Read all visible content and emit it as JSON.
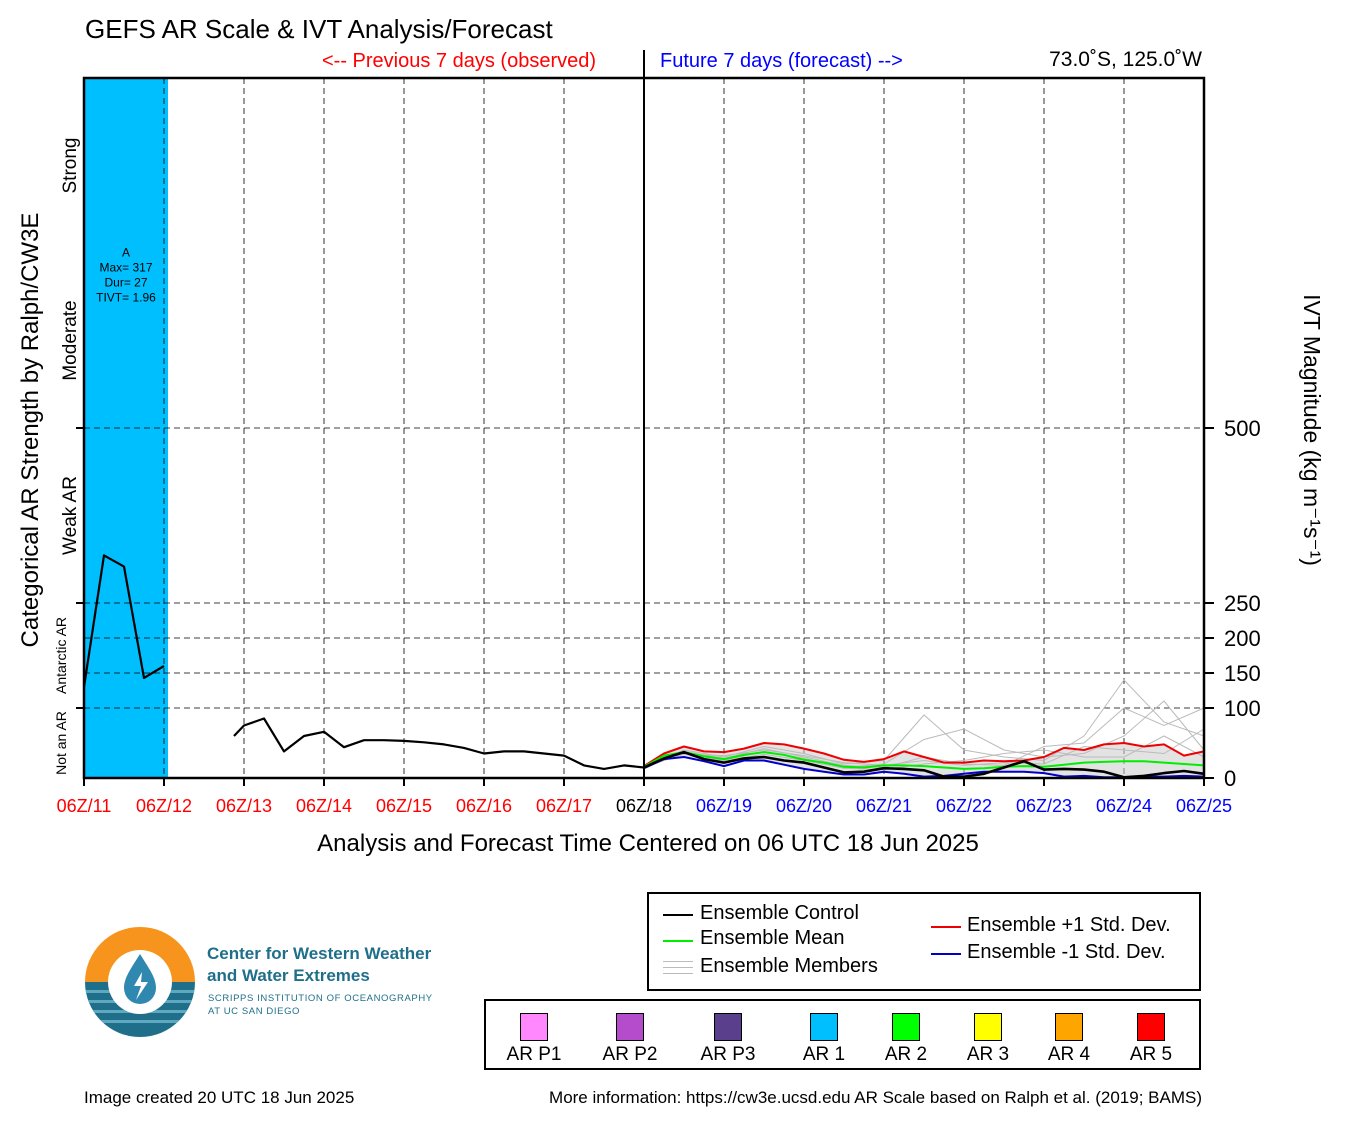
{
  "title": "GEFS AR Scale & IVT Analysis/Forecast",
  "previous_label": "<-- Previous 7 days (observed)",
  "future_label": "Future 7 days (forecast) -->",
  "location": "73.0˚S, 125.0˚W",
  "colors": {
    "observed": "#ff0000",
    "forecast": "#0000ff",
    "ar1_band": "#00bfff",
    "control": "#000000",
    "mean": "#00ee00",
    "plus_std": "#ee0000",
    "minus_std": "#0000cc",
    "members": "#bbbbbb"
  },
  "chart_data": {
    "type": "line",
    "title": "GEFS AR Scale & IVT Analysis/Forecast",
    "xlabel": "Analysis and Forecast Time Centered on 06 UTC 18 Jun 2025",
    "ylabel_left": "Categorical AR Strength by Ralph/CW3E",
    "ylabel_right": "IVT Magnitude (kg m⁻¹s⁻¹)",
    "x_unit": "days relative to 06Z/11",
    "xlim": [
      0,
      14
    ],
    "ylim": [
      0,
      1000
    ],
    "x_ticks": [
      {
        "label": "06Z/11",
        "x": 0,
        "period": "observed"
      },
      {
        "label": "06Z/12",
        "x": 1,
        "period": "observed"
      },
      {
        "label": "06Z/13",
        "x": 2,
        "period": "observed"
      },
      {
        "label": "06Z/14",
        "x": 3,
        "period": "observed"
      },
      {
        "label": "06Z/15",
        "x": 4,
        "period": "observed"
      },
      {
        "label": "06Z/16",
        "x": 5,
        "period": "observed"
      },
      {
        "label": "06Z/17",
        "x": 6,
        "period": "observed"
      },
      {
        "label": "06Z/18",
        "x": 7,
        "period": "current"
      },
      {
        "label": "06Z/19",
        "x": 8,
        "period": "forecast"
      },
      {
        "label": "06Z/20",
        "x": 9,
        "period": "forecast"
      },
      {
        "label": "06Z/21",
        "x": 10,
        "period": "forecast"
      },
      {
        "label": "06Z/22",
        "x": 11,
        "period": "forecast"
      },
      {
        "label": "06Z/23",
        "x": 12,
        "period": "forecast"
      },
      {
        "label": "06Z/24",
        "x": 13,
        "period": "forecast"
      },
      {
        "label": "06Z/25",
        "x": 14,
        "period": "forecast"
      }
    ],
    "y_ticks": [
      0,
      100,
      150,
      200,
      250,
      500
    ],
    "grid": true,
    "category_labels": [
      {
        "label": "Not an AR",
        "y0": 0,
        "y1": 100
      },
      {
        "label": "Antarctic AR",
        "y0": 100,
        "y1": 250
      },
      {
        "label": "Weak AR",
        "y0": 250,
        "y1": 500
      },
      {
        "label": "Moderate",
        "y0": 500,
        "y1": 750
      },
      {
        "label": "Strong",
        "y0": 750,
        "y1": 1000
      }
    ],
    "ar_events": [
      {
        "category": "AR 1",
        "x_start": 0,
        "x_end": 1.05,
        "label": "A",
        "max": "Max= 317",
        "dur": "Dur= 27",
        "tivt": "TIVT= 1.96"
      }
    ],
    "observed_segments": [
      [
        [
          0,
          130
        ],
        [
          0.25,
          318
        ],
        [
          0.5,
          302
        ],
        [
          0.75,
          143
        ],
        [
          1.0,
          160
        ]
      ],
      [
        [
          1.875,
          60
        ],
        [
          2.0,
          75
        ],
        [
          2.25,
          85
        ],
        [
          2.5,
          38
        ],
        [
          2.75,
          60
        ],
        [
          3.0,
          66
        ],
        [
          3.25,
          44
        ],
        [
          3.5,
          54
        ],
        [
          3.75,
          54
        ],
        [
          4.0,
          53
        ],
        [
          4.25,
          51
        ],
        [
          4.5,
          48
        ],
        [
          4.75,
          43
        ],
        [
          5.0,
          35
        ],
        [
          5.25,
          38
        ],
        [
          5.5,
          38
        ],
        [
          5.75,
          35
        ],
        [
          6.0,
          32
        ],
        [
          6.25,
          18
        ],
        [
          6.5,
          13
        ],
        [
          6.75,
          18
        ],
        [
          7.0,
          15
        ]
      ]
    ],
    "series": [
      {
        "name": "Ensemble Control",
        "key": "control",
        "points": [
          [
            7,
            15
          ],
          [
            7.25,
            28
          ],
          [
            7.5,
            37
          ],
          [
            7.75,
            27
          ],
          [
            8,
            22
          ],
          [
            8.25,
            28
          ],
          [
            8.5,
            30
          ],
          [
            8.75,
            25
          ],
          [
            9,
            22
          ],
          [
            9.25,
            15
          ],
          [
            9.5,
            8
          ],
          [
            9.75,
            9
          ],
          [
            10,
            14
          ],
          [
            10.25,
            13
          ],
          [
            10.5,
            11
          ],
          [
            10.75,
            2
          ],
          [
            11,
            2
          ],
          [
            11.25,
            6
          ],
          [
            11.5,
            15
          ],
          [
            11.75,
            24
          ],
          [
            12,
            12
          ],
          [
            12.25,
            13
          ],
          [
            12.5,
            12
          ],
          [
            12.75,
            9
          ],
          [
            13,
            1
          ],
          [
            13.25,
            3
          ],
          [
            13.5,
            7
          ],
          [
            13.75,
            10
          ],
          [
            14,
            6
          ]
        ]
      },
      {
        "name": "Ensemble Mean",
        "key": "mean",
        "points": [
          [
            7,
            16
          ],
          [
            7.25,
            32
          ],
          [
            7.5,
            37
          ],
          [
            7.75,
            31
          ],
          [
            8,
            27
          ],
          [
            8.25,
            33
          ],
          [
            8.5,
            37
          ],
          [
            8.75,
            33
          ],
          [
            9,
            26
          ],
          [
            9.25,
            22
          ],
          [
            9.5,
            16
          ],
          [
            9.75,
            15
          ],
          [
            10,
            18
          ],
          [
            10.25,
            18
          ],
          [
            10.5,
            17
          ],
          [
            10.75,
            15
          ],
          [
            11,
            13
          ],
          [
            11.25,
            14
          ],
          [
            11.5,
            16
          ],
          [
            11.75,
            17
          ],
          [
            12,
            16
          ],
          [
            12.25,
            19
          ],
          [
            12.5,
            22
          ],
          [
            12.75,
            23
          ],
          [
            13,
            24
          ],
          [
            13.25,
            24
          ],
          [
            13.5,
            22
          ],
          [
            13.75,
            20
          ],
          [
            14,
            18
          ]
        ]
      },
      {
        "name": "Ensemble +1 Std. Dev.",
        "key": "plus_std",
        "points": [
          [
            7,
            17
          ],
          [
            7.25,
            35
          ],
          [
            7.5,
            45
          ],
          [
            7.75,
            38
          ],
          [
            8,
            37
          ],
          [
            8.25,
            42
          ],
          [
            8.5,
            50
          ],
          [
            8.75,
            48
          ],
          [
            9,
            42
          ],
          [
            9.25,
            35
          ],
          [
            9.5,
            26
          ],
          [
            9.75,
            23
          ],
          [
            10,
            27
          ],
          [
            10.25,
            38
          ],
          [
            10.5,
            30
          ],
          [
            10.75,
            22
          ],
          [
            11,
            22
          ],
          [
            11.25,
            25
          ],
          [
            11.5,
            24
          ],
          [
            11.75,
            25
          ],
          [
            12,
            30
          ],
          [
            12.25,
            43
          ],
          [
            12.5,
            40
          ],
          [
            12.75,
            48
          ],
          [
            13,
            50
          ],
          [
            13.25,
            45
          ],
          [
            13.5,
            48
          ],
          [
            13.75,
            32
          ],
          [
            14,
            38
          ]
        ]
      },
      {
        "name": "Ensemble -1 Std. Dev.",
        "key": "minus_std",
        "points": [
          [
            7,
            14
          ],
          [
            7.25,
            27
          ],
          [
            7.5,
            30
          ],
          [
            7.75,
            24
          ],
          [
            8,
            17
          ],
          [
            8.25,
            25
          ],
          [
            8.5,
            25
          ],
          [
            8.75,
            19
          ],
          [
            9,
            13
          ],
          [
            9.25,
            9
          ],
          [
            9.5,
            5
          ],
          [
            9.75,
            5
          ],
          [
            10,
            9
          ],
          [
            10.25,
            6
          ],
          [
            10.5,
            2
          ],
          [
            10.75,
            3
          ],
          [
            11,
            6
          ],
          [
            11.25,
            9
          ],
          [
            11.5,
            9
          ],
          [
            11.75,
            9
          ],
          [
            12,
            7
          ],
          [
            12.25,
            2
          ],
          [
            12.5,
            3
          ],
          [
            12.75,
            1
          ],
          [
            13,
            1
          ],
          [
            13.25,
            2
          ],
          [
            13.5,
            2
          ],
          [
            13.75,
            3
          ],
          [
            14,
            2
          ]
        ]
      }
    ],
    "members": [
      [
        [
          7,
          16
        ],
        [
          7.5,
          40
        ],
        [
          8,
          30
        ],
        [
          8.5,
          45
        ],
        [
          9,
          35
        ],
        [
          9.5,
          20
        ],
        [
          10,
          25
        ],
        [
          10.5,
          90
        ],
        [
          11,
          40
        ],
        [
          11.5,
          30
        ],
        [
          12,
          25
        ],
        [
          12.5,
          60
        ],
        [
          13,
          140
        ],
        [
          13.5,
          80
        ],
        [
          14,
          60
        ]
      ],
      [
        [
          7,
          15
        ],
        [
          7.5,
          35
        ],
        [
          8,
          25
        ],
        [
          8.5,
          38
        ],
        [
          9,
          28
        ],
        [
          9.5,
          15
        ],
        [
          10,
          20
        ],
        [
          10.5,
          55
        ],
        [
          11,
          70
        ],
        [
          11.5,
          40
        ],
        [
          12,
          30
        ],
        [
          12.5,
          35
        ],
        [
          13,
          60
        ],
        [
          13.5,
          110
        ],
        [
          14,
          40
        ]
      ],
      [
        [
          7,
          16
        ],
        [
          7.5,
          38
        ],
        [
          8,
          28
        ],
        [
          8.5,
          42
        ],
        [
          9,
          30
        ],
        [
          9.5,
          18
        ],
        [
          10,
          15
        ],
        [
          10.5,
          30
        ],
        [
          11,
          20
        ],
        [
          11.5,
          18
        ],
        [
          12,
          45
        ],
        [
          12.5,
          50
        ],
        [
          13,
          100
        ],
        [
          13.5,
          75
        ],
        [
          14,
          100
        ]
      ],
      [
        [
          7,
          15
        ],
        [
          7.5,
          36
        ],
        [
          8,
          24
        ],
        [
          8.5,
          34
        ],
        [
          9,
          25
        ],
        [
          9.5,
          14
        ],
        [
          10,
          12
        ],
        [
          10.5,
          20
        ],
        [
          11,
          25
        ],
        [
          11.5,
          35
        ],
        [
          12,
          40
        ],
        [
          12.5,
          30
        ],
        [
          13,
          30
        ],
        [
          13.5,
          60
        ],
        [
          14,
          30
        ]
      ],
      [
        [
          7,
          16
        ],
        [
          7.5,
          34
        ],
        [
          8,
          32
        ],
        [
          8.5,
          40
        ],
        [
          9,
          32
        ],
        [
          9.5,
          22
        ],
        [
          10,
          18
        ],
        [
          10.5,
          25
        ],
        [
          11,
          18
        ],
        [
          11.5,
          22
        ],
        [
          12,
          20
        ],
        [
          12.5,
          45
        ],
        [
          13,
          40
        ],
        [
          13.5,
          35
        ],
        [
          14,
          70
        ]
      ]
    ]
  },
  "legend": {
    "items": [
      {
        "label": "Ensemble Control",
        "key": "control"
      },
      {
        "label": "Ensemble Mean",
        "key": "mean"
      },
      {
        "label": "Ensemble Members",
        "key": "members"
      },
      {
        "label": "Ensemble +1 Std. Dev.",
        "key": "plus_std"
      },
      {
        "label": "Ensemble -1 Std. Dev.",
        "key": "minus_std"
      }
    ]
  },
  "ar_scale": [
    {
      "label": "AR P1",
      "color": "#ff88ff"
    },
    {
      "label": "AR P2",
      "color": "#b44ccc"
    },
    {
      "label": "AR P3",
      "color": "#5a3f8c"
    },
    {
      "label": "AR 1",
      "color": "#00bfff"
    },
    {
      "label": "AR 2",
      "color": "#00ff00"
    },
    {
      "label": "AR 3",
      "color": "#ffff00"
    },
    {
      "label": "AR 4",
      "color": "#ffa500"
    },
    {
      "label": "AR 5",
      "color": "#ff0000"
    }
  ],
  "org": {
    "line1": "Center for Western Weather",
    "line2": "and Water Extremes",
    "line3": "SCRIPPS INSTITUTION OF OCEANOGRAPHY",
    "line4": "AT UC SAN DIEGO"
  },
  "footer": {
    "created": "Image created 20 UTC 18 Jun 2025",
    "info": "More information: https://cw3e.ucsd.edu AR Scale based on Ralph et al. (2019; BAMS)"
  }
}
